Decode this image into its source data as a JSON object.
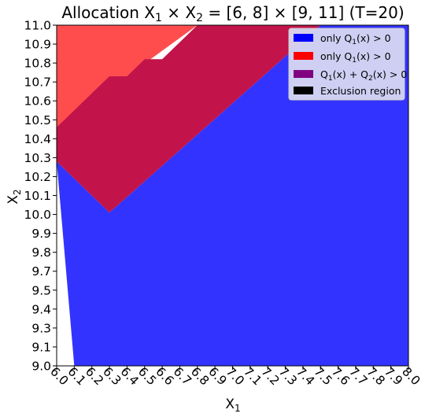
{
  "chart_data": {
    "type": "area",
    "title": "Allocation X₁ × X₂ = [6, 8] × [9, 11] (T=20)",
    "xlabel": "X₁",
    "ylabel": "X₂",
    "xlim": [
      6.0,
      8.0
    ],
    "ylim": [
      9.0,
      11.0
    ],
    "xticks": [
      "6.0",
      "6.1",
      "6.2",
      "6.3",
      "6.4",
      "6.5",
      "6.6",
      "6.7",
      "6.8",
      "6.9",
      "7.0",
      "7.1",
      "7.2",
      "7.3",
      "7.4",
      "7.5",
      "7.6",
      "7.7",
      "7.8",
      "7.9",
      "8.0"
    ],
    "yticks": [
      "9.0",
      "9.1",
      "9.3",
      "9.4",
      "9.5",
      "9.7",
      "9.8",
      "9.9",
      "10.0",
      "10.1",
      "10.2",
      "10.3",
      "10.4",
      "10.5",
      "10.6",
      "10.7",
      "10.8",
      "10.9",
      "11.0"
    ],
    "legend_position": "top-right",
    "legend": [
      {
        "label": "only Q₁(x) > 0",
        "color": "#0000ff"
      },
      {
        "label": "only Q₁(x) > 0",
        "color": "#ff0000"
      },
      {
        "label": "Q₁(x) + Q₂(x) > 0",
        "color": "#800080"
      },
      {
        "label": "Exclusion region",
        "color": "#000000"
      }
    ],
    "regions": [
      {
        "name": "only Q₁(x) > 0",
        "fill": "#3333ff",
        "polygon": [
          [
            6.1,
            9.0
          ],
          [
            8.0,
            9.0
          ],
          [
            8.0,
            11.0
          ],
          [
            7.5,
            11.0
          ],
          [
            6.3,
            9.9
          ],
          [
            6.0,
            10.2
          ]
        ]
      },
      {
        "name": "only Q₁(x) > 0",
        "fill": "#ff4d4d",
        "polygon": [
          [
            6.0,
            10.4
          ],
          [
            6.0,
            11.0
          ],
          [
            6.8,
            11.0
          ]
        ]
      },
      {
        "name": "Q₁(x) + Q₂(x) > 0",
        "fill": "#c2134a",
        "polygon": [
          [
            6.0,
            10.2
          ],
          [
            6.3,
            9.9
          ],
          [
            7.5,
            11.0
          ],
          [
            6.8,
            11.0
          ],
          [
            6.6,
            10.8
          ],
          [
            6.5,
            10.8
          ],
          [
            6.4,
            10.7
          ],
          [
            6.3,
            10.7
          ],
          [
            6.0,
            10.4
          ]
        ]
      }
    ]
  }
}
